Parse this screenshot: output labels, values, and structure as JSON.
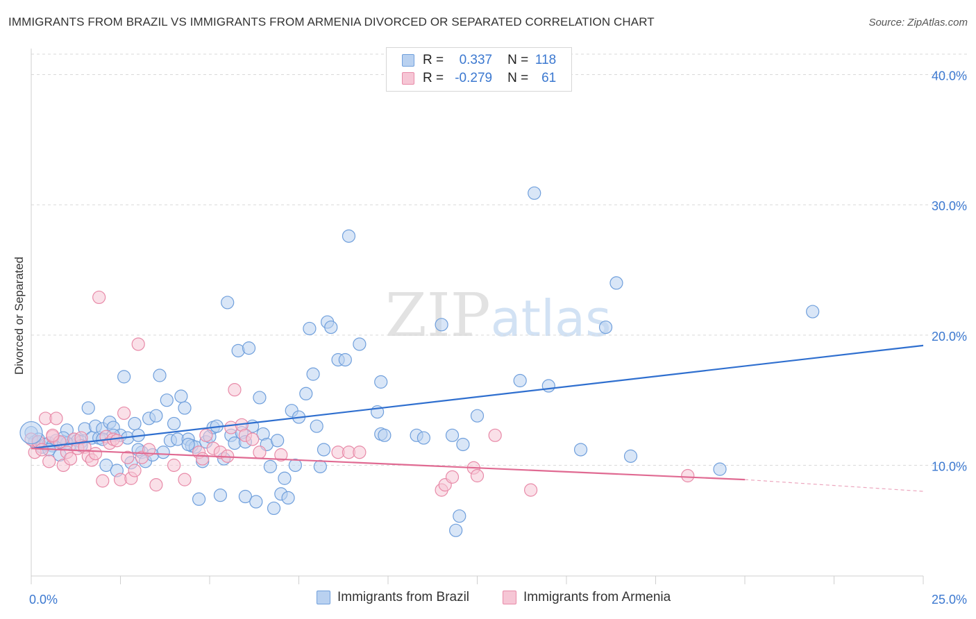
{
  "title": "IMMIGRANTS FROM BRAZIL VS IMMIGRANTS FROM ARMENIA DIVORCED OR SEPARATED CORRELATION CHART",
  "source": "Source: ZipAtlas.com",
  "watermark": {
    "zip": "ZIP",
    "atlas": "atlas"
  },
  "stats": [
    {
      "r_label": "R =",
      "r_value": "0.337",
      "n_label": "N =",
      "n_value": "118"
    },
    {
      "r_label": "R =",
      "r_value": "-0.279",
      "n_label": "N =",
      "n_value": "61"
    }
  ],
  "legend": [
    {
      "label": "Immigrants from Brazil"
    },
    {
      "label": "Immigrants from Armenia"
    }
  ],
  "colors": {
    "blue_fill": "#b9d1f0",
    "blue_stroke": "#6f9fdc",
    "blue_line": "#2f6fcf",
    "pink_fill": "#f6c6d5",
    "pink_stroke": "#e88aa8",
    "pink_line": "#e06a92",
    "axis_text": "#3b78d0",
    "grid": "#d9d9d9"
  },
  "chart_data": {
    "type": "scatter",
    "title": "IMMIGRANTS FROM BRAZIL VS IMMIGRANTS FROM ARMENIA DIVORCED OR SEPARATED CORRELATION CHART",
    "xlabel": "",
    "ylabel": "Divorced or Separated",
    "xlim": [
      0,
      25
    ],
    "ylim": [
      1.5,
      42
    ],
    "x_tick_labels": [
      "0.0%",
      "25.0%"
    ],
    "y_ticks": [
      10,
      20,
      30,
      40
    ],
    "y_tick_labels": [
      "10.0%",
      "20.0%",
      "30.0%",
      "40.0%"
    ],
    "grid": "horizontal dashed",
    "legend_position": "bottom",
    "series": [
      {
        "name": "Immigrants from Brazil",
        "trend": {
          "x": [
            0,
            25
          ],
          "y": [
            11.3,
            19.2
          ]
        },
        "points": [
          [
            0.0,
            12.5
          ],
          [
            0.1,
            11.8
          ],
          [
            0.2,
            12.0
          ],
          [
            0.3,
            11.4
          ],
          [
            0.4,
            11.6
          ],
          [
            0.5,
            11.7
          ],
          [
            0.6,
            11.5
          ],
          [
            0.7,
            11.9
          ],
          [
            0.8,
            10.8
          ],
          [
            0.9,
            11.8
          ],
          [
            1.0,
            12.7
          ],
          [
            1.1,
            11.6
          ],
          [
            1.2,
            12.0
          ],
          [
            1.3,
            11.9
          ],
          [
            1.4,
            11.8
          ],
          [
            1.5,
            12.8
          ],
          [
            1.6,
            14.4
          ],
          [
            1.7,
            12.1
          ],
          [
            1.8,
            13.0
          ],
          [
            1.9,
            12.1
          ],
          [
            2.0,
            12.8
          ],
          [
            2.1,
            10.0
          ],
          [
            2.2,
            13.3
          ],
          [
            2.3,
            12.9
          ],
          [
            2.4,
            9.6
          ],
          [
            2.5,
            12.3
          ],
          [
            2.6,
            16.8
          ],
          [
            2.7,
            12.1
          ],
          [
            2.8,
            10.2
          ],
          [
            2.9,
            13.2
          ],
          [
            3.0,
            12.3
          ],
          [
            3.1,
            11.0
          ],
          [
            3.2,
            10.3
          ],
          [
            3.3,
            13.6
          ],
          [
            3.4,
            10.8
          ],
          [
            3.5,
            13.8
          ],
          [
            3.6,
            16.9
          ],
          [
            3.7,
            11.0
          ],
          [
            3.8,
            15.0
          ],
          [
            3.9,
            11.9
          ],
          [
            4.0,
            13.2
          ],
          [
            4.1,
            12.0
          ],
          [
            4.2,
            15.3
          ],
          [
            4.3,
            14.4
          ],
          [
            4.4,
            12.0
          ],
          [
            4.5,
            11.5
          ],
          [
            4.6,
            11.4
          ],
          [
            4.7,
            7.4
          ],
          [
            4.8,
            10.3
          ],
          [
            4.9,
            11.8
          ],
          [
            5.0,
            12.2
          ],
          [
            5.1,
            12.9
          ],
          [
            5.2,
            13.0
          ],
          [
            5.3,
            7.7
          ],
          [
            5.4,
            10.5
          ],
          [
            5.5,
            22.5
          ],
          [
            5.6,
            12.3
          ],
          [
            5.7,
            11.7
          ],
          [
            5.8,
            18.8
          ],
          [
            5.9,
            12.5
          ],
          [
            6.0,
            7.6
          ],
          [
            6.1,
            19.0
          ],
          [
            6.2,
            13.0
          ],
          [
            6.3,
            7.2
          ],
          [
            6.4,
            15.2
          ],
          [
            6.5,
            12.4
          ],
          [
            6.6,
            11.6
          ],
          [
            6.7,
            9.9
          ],
          [
            6.8,
            6.7
          ],
          [
            6.9,
            11.9
          ],
          [
            7.0,
            7.8
          ],
          [
            7.1,
            9.0
          ],
          [
            7.2,
            7.5
          ],
          [
            7.3,
            14.2
          ],
          [
            7.4,
            10.0
          ],
          [
            7.5,
            13.7
          ],
          [
            7.7,
            15.5
          ],
          [
            7.8,
            20.5
          ],
          [
            7.9,
            17.0
          ],
          [
            8.0,
            13.0
          ],
          [
            8.1,
            9.9
          ],
          [
            8.2,
            11.2
          ],
          [
            8.3,
            21.0
          ],
          [
            8.4,
            20.6
          ],
          [
            8.6,
            18.1
          ],
          [
            8.8,
            18.1
          ],
          [
            8.9,
            27.6
          ],
          [
            9.2,
            19.3
          ],
          [
            9.8,
            16.4
          ],
          [
            9.7,
            14.1
          ],
          [
            9.8,
            12.4
          ],
          [
            9.9,
            12.3
          ],
          [
            10.8,
            12.3
          ],
          [
            11.0,
            12.1
          ],
          [
            11.5,
            20.8
          ],
          [
            11.8,
            12.3
          ],
          [
            11.9,
            5.0
          ],
          [
            12.0,
            6.1
          ],
          [
            12.1,
            11.6
          ],
          [
            12.5,
            13.8
          ],
          [
            13.7,
            16.5
          ],
          [
            14.1,
            30.9
          ],
          [
            14.5,
            16.1
          ],
          [
            15.4,
            11.2
          ],
          [
            16.1,
            20.6
          ],
          [
            16.4,
            24.0
          ],
          [
            16.8,
            10.7
          ],
          [
            19.3,
            9.7
          ],
          [
            21.9,
            21.8
          ],
          [
            1.4,
            11.5
          ],
          [
            2.3,
            12.3
          ],
          [
            3.0,
            11.2
          ],
          [
            0.5,
            11.2
          ],
          [
            1.0,
            11.7
          ],
          [
            0.9,
            12.1
          ],
          [
            2.0,
            12.0
          ],
          [
            4.4,
            11.6
          ],
          [
            6.0,
            11.8
          ]
        ]
      },
      {
        "name": "Immigrants from Armenia",
        "trend": {
          "x": [
            0,
            20.0
          ],
          "y": [
            11.3,
            8.9
          ]
        },
        "trend_dashed": {
          "x": [
            20.0,
            25
          ],
          "y": [
            8.9,
            8.0
          ]
        },
        "points": [
          [
            0.0,
            12.0
          ],
          [
            0.1,
            11.0
          ],
          [
            0.2,
            11.8
          ],
          [
            0.3,
            11.2
          ],
          [
            0.4,
            13.6
          ],
          [
            0.5,
            10.3
          ],
          [
            0.6,
            12.2
          ],
          [
            0.7,
            13.6
          ],
          [
            0.8,
            11.8
          ],
          [
            0.9,
            10.0
          ],
          [
            1.0,
            11.0
          ],
          [
            1.1,
            10.5
          ],
          [
            1.2,
            12.0
          ],
          [
            1.3,
            11.3
          ],
          [
            1.4,
            12.1
          ],
          [
            1.5,
            11.4
          ],
          [
            1.6,
            10.7
          ],
          [
            1.7,
            10.4
          ],
          [
            1.8,
            10.9
          ],
          [
            1.9,
            22.9
          ],
          [
            2.0,
            8.8
          ],
          [
            2.1,
            12.2
          ],
          [
            2.2,
            11.7
          ],
          [
            2.3,
            12.0
          ],
          [
            2.4,
            11.9
          ],
          [
            2.5,
            8.9
          ],
          [
            2.6,
            14.0
          ],
          [
            2.7,
            10.6
          ],
          [
            2.8,
            9.0
          ],
          [
            2.9,
            9.6
          ],
          [
            3.0,
            19.3
          ],
          [
            3.1,
            10.6
          ],
          [
            3.3,
            11.2
          ],
          [
            3.5,
            8.5
          ],
          [
            4.0,
            10.0
          ],
          [
            4.3,
            8.9
          ],
          [
            4.7,
            11.0
          ],
          [
            4.8,
            10.5
          ],
          [
            4.9,
            12.3
          ],
          [
            5.1,
            11.3
          ],
          [
            5.3,
            11.0
          ],
          [
            5.5,
            10.7
          ],
          [
            5.6,
            12.9
          ],
          [
            5.7,
            15.8
          ],
          [
            5.9,
            13.1
          ],
          [
            6.0,
            12.3
          ],
          [
            6.2,
            12.0
          ],
          [
            6.4,
            11.0
          ],
          [
            7.0,
            10.8
          ],
          [
            8.6,
            11.0
          ],
          [
            8.9,
            11.0
          ],
          [
            9.2,
            11.0
          ],
          [
            11.5,
            8.1
          ],
          [
            11.6,
            8.5
          ],
          [
            11.8,
            9.1
          ],
          [
            12.4,
            9.8
          ],
          [
            12.5,
            9.2
          ],
          [
            13.0,
            12.3
          ],
          [
            14.0,
            8.1
          ],
          [
            18.4,
            9.2
          ],
          [
            0.6,
            12.3
          ]
        ]
      }
    ]
  }
}
